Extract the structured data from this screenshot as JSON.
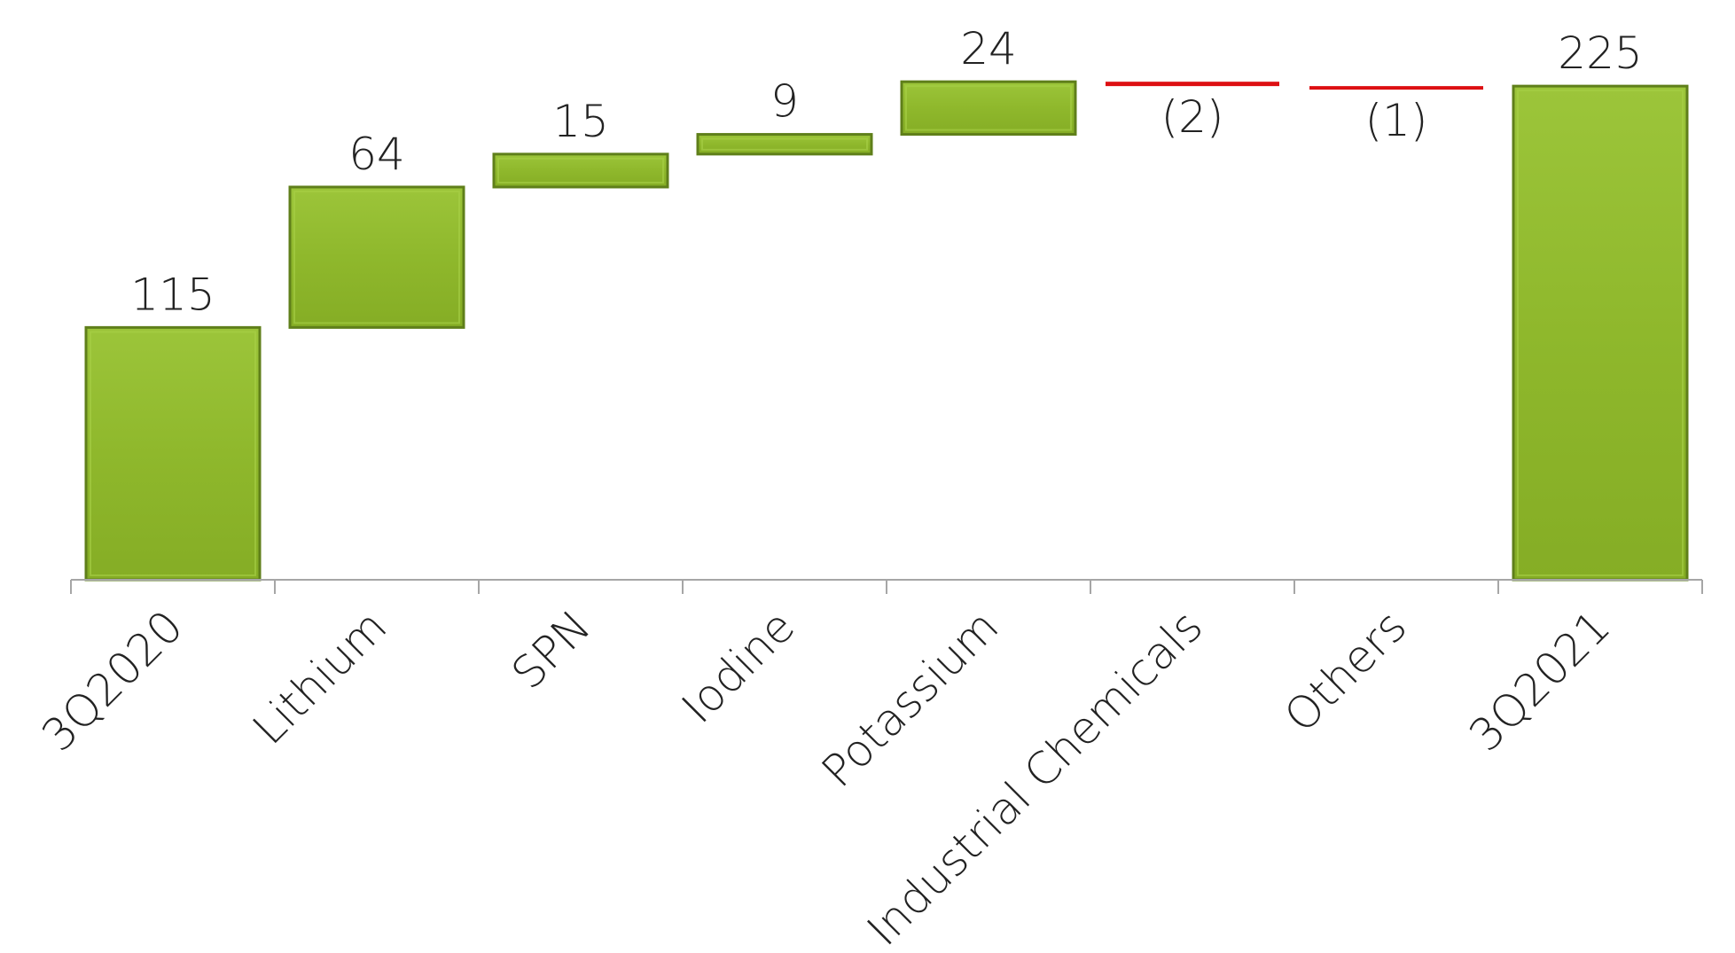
{
  "chart_data": {
    "type": "waterfall",
    "categories": [
      "3Q2020",
      "Lithium",
      "SPN",
      "Iodine",
      "Potassium",
      "Industrial Chemicals",
      "Others",
      "3Q2021"
    ],
    "values": [
      115,
      64,
      15,
      9,
      24,
      -2,
      -1,
      225
    ],
    "labels": [
      "115",
      "64",
      "15",
      "9",
      "24",
      "(2)",
      "(1)",
      "225"
    ],
    "kinds": [
      "total",
      "delta",
      "delta",
      "delta",
      "delta",
      "delta",
      "delta",
      "total"
    ],
    "ylim": [
      0,
      240
    ],
    "grid": false,
    "legend": "none",
    "colors": {
      "increase": "#8fb82c",
      "increase_edge": "#5f7f1a",
      "decrease": "#dd0f12",
      "total": "#8fb82c",
      "axis": "#a6a6a6"
    }
  }
}
